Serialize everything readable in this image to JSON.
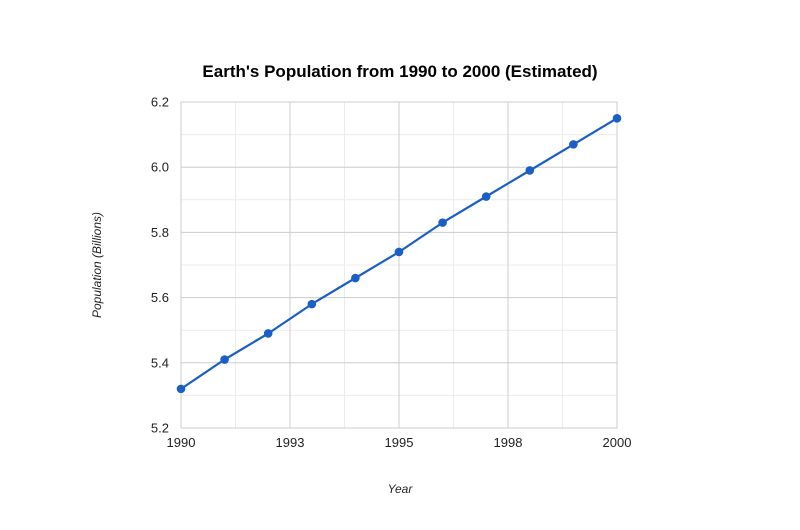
{
  "chart_data": {
    "type": "line",
    "title": "Earth's Population from 1990 to 2000 (Estimated)",
    "xlabel": "Year",
    "ylabel": "Population (Billions)",
    "xlim": [
      1990,
      2000
    ],
    "ylim": [
      5.2,
      6.2
    ],
    "x_ticks": [
      {
        "value": 1990,
        "label": "1990"
      },
      {
        "value": 1992.5,
        "label": "1993"
      },
      {
        "value": 1995,
        "label": "1995"
      },
      {
        "value": 1997.5,
        "label": "1998"
      },
      {
        "value": 2000,
        "label": "2000"
      }
    ],
    "y_ticks": [
      {
        "value": 5.2,
        "label": "5.2"
      },
      {
        "value": 5.4,
        "label": "5.4"
      },
      {
        "value": 5.6,
        "label": "5.6"
      },
      {
        "value": 5.8,
        "label": "5.8"
      },
      {
        "value": 6.0,
        "label": "6.0"
      },
      {
        "value": 6.2,
        "label": "6.2"
      }
    ],
    "grid": true,
    "legend": "none",
    "series": [
      {
        "color": "#1a5ec6",
        "x": [
          1990,
          1991,
          1992,
          1993,
          1994,
          1995,
          1996,
          1997,
          1998,
          1999,
          2000
        ],
        "y": [
          5.32,
          5.41,
          5.49,
          5.58,
          5.66,
          5.74,
          5.83,
          5.91,
          5.99,
          6.07,
          6.15
        ]
      }
    ]
  }
}
